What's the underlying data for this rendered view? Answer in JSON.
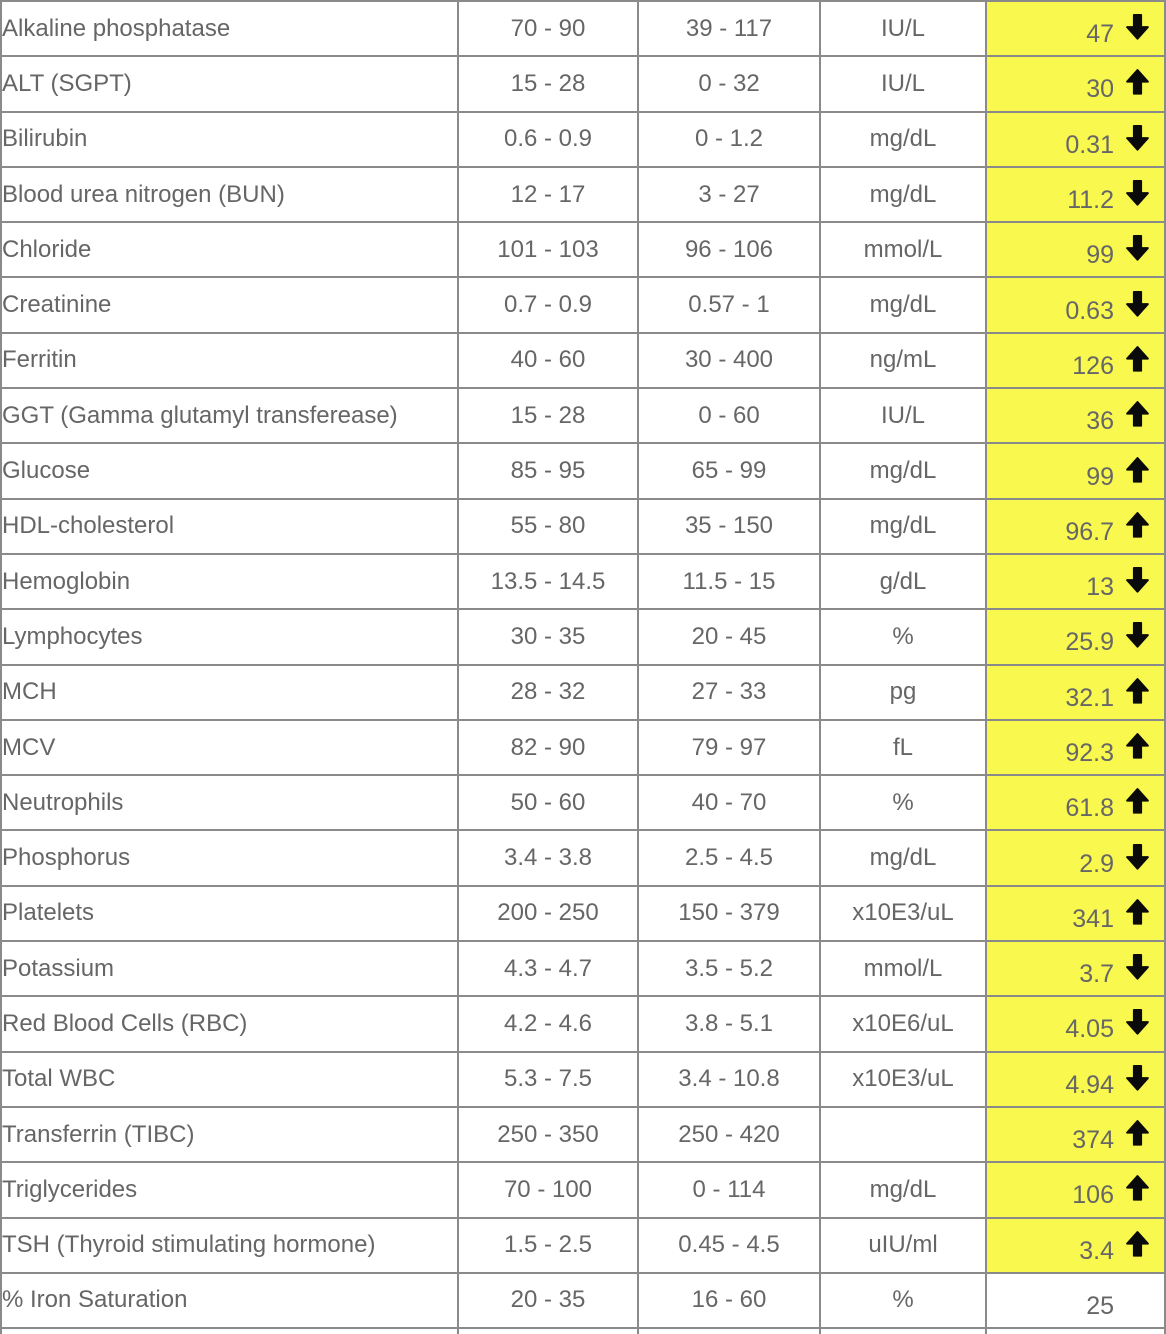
{
  "table": {
    "colors": {
      "flagged_cell_bg": "#f8f84f",
      "normal_cell_bg": "#ffffff",
      "text": "#666666",
      "border": "#8a8a8a",
      "arrow": "#0a0a0a"
    },
    "icons": {
      "up": "arrow-up-icon",
      "down": "arrow-down-icon"
    },
    "rows": [
      {
        "name": "Alkaline phosphatase",
        "optimal_range": "70 - 90",
        "standard_range": "39 - 117",
        "units": "IU/L",
        "value": "47",
        "flag": "down"
      },
      {
        "name": "ALT (SGPT)",
        "optimal_range": "15 - 28",
        "standard_range": "0 - 32",
        "units": "IU/L",
        "value": "30",
        "flag": "up"
      },
      {
        "name": "Bilirubin",
        "optimal_range": "0.6 - 0.9",
        "standard_range": "0 - 1.2",
        "units": "mg/dL",
        "value": "0.31",
        "flag": "down"
      },
      {
        "name": "Blood urea nitrogen (BUN)",
        "optimal_range": "12 - 17",
        "standard_range": "3 - 27",
        "units": "mg/dL",
        "value": "11.2",
        "flag": "down"
      },
      {
        "name": "Chloride",
        "optimal_range": "101 - 103",
        "standard_range": "96 - 106",
        "units": "mmol/L",
        "value": "99",
        "flag": "down"
      },
      {
        "name": "Creatinine",
        "optimal_range": "0.7 - 0.9",
        "standard_range": "0.57 - 1",
        "units": "mg/dL",
        "value": "0.63",
        "flag": "down"
      },
      {
        "name": "Ferritin",
        "optimal_range": "40 - 60",
        "standard_range": "30 - 400",
        "units": "ng/mL",
        "value": "126",
        "flag": "up"
      },
      {
        "name": "GGT (Gamma glutamyl transferease)",
        "optimal_range": "15 - 28",
        "standard_range": "0 - 60",
        "units": "IU/L",
        "value": "36",
        "flag": "up"
      },
      {
        "name": "Glucose",
        "optimal_range": "85 - 95",
        "standard_range": "65 - 99",
        "units": "mg/dL",
        "value": "99",
        "flag": "up"
      },
      {
        "name": "HDL-cholesterol",
        "optimal_range": "55 - 80",
        "standard_range": "35 - 150",
        "units": "mg/dL",
        "value": "96.7",
        "flag": "up"
      },
      {
        "name": "Hemoglobin",
        "optimal_range": "13.5 - 14.5",
        "standard_range": "11.5 - 15",
        "units": "g/dL",
        "value": "13",
        "flag": "down"
      },
      {
        "name": "Lymphocytes",
        "optimal_range": "30 - 35",
        "standard_range": "20 - 45",
        "units": "%",
        "value": "25.9",
        "flag": "down"
      },
      {
        "name": "MCH",
        "optimal_range": "28 - 32",
        "standard_range": "27 - 33",
        "units": "pg",
        "value": "32.1",
        "flag": "up"
      },
      {
        "name": "MCV",
        "optimal_range": "82 - 90",
        "standard_range": "79 - 97",
        "units": "fL",
        "value": "92.3",
        "flag": "up"
      },
      {
        "name": "Neutrophils",
        "optimal_range": "50 - 60",
        "standard_range": "40 - 70",
        "units": "%",
        "value": "61.8",
        "flag": "up"
      },
      {
        "name": "Phosphorus",
        "optimal_range": "3.4 - 3.8",
        "standard_range": "2.5 - 4.5",
        "units": "mg/dL",
        "value": "2.9",
        "flag": "down"
      },
      {
        "name": "Platelets",
        "optimal_range": "200 - 250",
        "standard_range": "150 - 379",
        "units": "x10E3/uL",
        "value": "341",
        "flag": "up"
      },
      {
        "name": "Potassium",
        "optimal_range": "4.3 - 4.7",
        "standard_range": "3.5 - 5.2",
        "units": "mmol/L",
        "value": "3.7",
        "flag": "down"
      },
      {
        "name": "Red Blood Cells (RBC)",
        "optimal_range": "4.2 - 4.6",
        "standard_range": "3.8 - 5.1",
        "units": "x10E6/uL",
        "value": "4.05",
        "flag": "down"
      },
      {
        "name": "Total WBC",
        "optimal_range": "5.3 - 7.5",
        "standard_range": "3.4 - 10.8",
        "units": "x10E3/uL",
        "value": "4.94",
        "flag": "down"
      },
      {
        "name": "Transferrin (TIBC)",
        "optimal_range": "250 - 350",
        "standard_range": "250 - 420",
        "units": "",
        "value": "374",
        "flag": "up"
      },
      {
        "name": "Triglycerides",
        "optimal_range": "70 - 100",
        "standard_range": "0 - 114",
        "units": "mg/dL",
        "value": "106",
        "flag": "up"
      },
      {
        "name": "TSH (Thyroid stimulating hormone)",
        "optimal_range": "1.5 - 2.5",
        "standard_range": "0.45 - 4.5",
        "units": "uIU/ml",
        "value": "3.4",
        "flag": "up"
      },
      {
        "name": "% Iron Saturation",
        "optimal_range": "20 - 35",
        "standard_range": "16 - 60",
        "units": "%",
        "value": "25",
        "flag": "none"
      }
    ]
  }
}
